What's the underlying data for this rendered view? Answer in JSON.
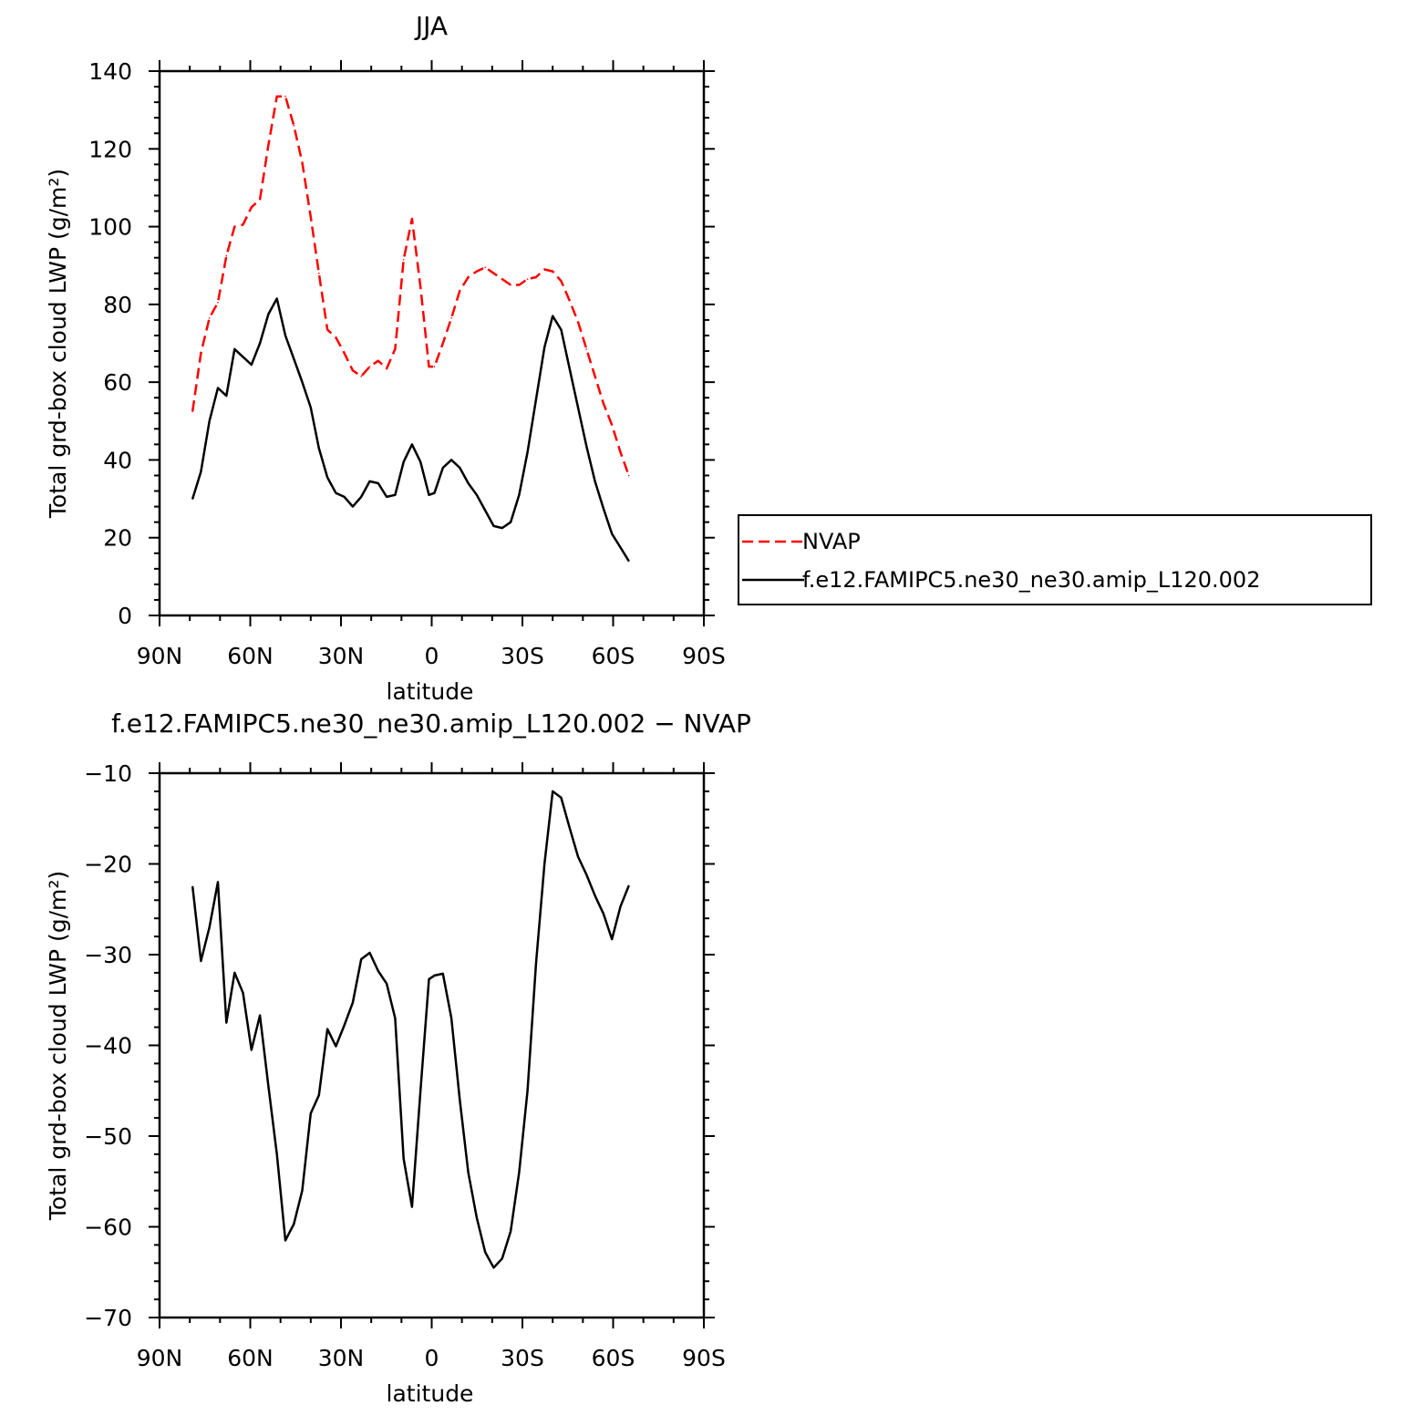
{
  "chart_data": [
    {
      "type": "line",
      "title": "JJA",
      "xlabel": "latitude",
      "ylabel": "Total grd-box cloud LWP (g/m²)",
      "xlim": [
        90,
        -90
      ],
      "ylim": [
        0,
        140
      ],
      "x_ticks": [
        90,
        60,
        30,
        0,
        -30,
        -60,
        -90
      ],
      "x_tick_labels": [
        "90N",
        "60N",
        "30N",
        "0",
        "30S",
        "60S",
        "90S"
      ],
      "y_ticks": [
        0,
        20,
        40,
        60,
        80,
        100,
        120,
        140
      ],
      "y_tick_labels": [
        "0",
        "20",
        "40",
        "60",
        "80",
        "100",
        "120",
        "140"
      ],
      "legend_position": "right",
      "x": [
        79.1,
        76.3,
        73.5,
        70.7,
        67.9,
        65.2,
        62.4,
        59.6,
        56.8,
        54.0,
        51.2,
        48.4,
        45.6,
        42.8,
        40.0,
        37.3,
        34.5,
        31.7,
        28.9,
        26.1,
        23.3,
        20.5,
        17.7,
        14.9,
        12.1,
        9.3,
        6.5,
        3.7,
        0.9,
        -0.9,
        -3.7,
        -6.5,
        -9.3,
        -12.1,
        -14.9,
        -17.7,
        -20.5,
        -23.3,
        -26.1,
        -28.9,
        -31.7,
        -34.5,
        -37.3,
        -40.0,
        -42.8,
        -45.6,
        -48.4,
        -51.2,
        -54.0,
        -56.8,
        -59.6,
        -62.4,
        -65.2
      ],
      "series": [
        {
          "name": "NVAP",
          "color": "#ff0000",
          "dash": "dashed",
          "values": [
            52.5,
            67.5,
            76.5,
            80.5,
            92.5,
            100.0,
            100.5,
            105.0,
            107.0,
            121.0,
            133.5,
            133.5,
            126.0,
            116.5,
            102.5,
            88.0,
            73.5,
            71.5,
            67.5,
            63.0,
            61.5,
            64.0,
            65.5,
            63.5,
            68.5,
            91.5,
            102.0,
            84.5,
            64.0,
            64.0,
            70.0,
            76.5,
            83.5,
            87.0,
            88.5,
            89.5,
            88.0,
            86.5,
            85.0,
            85.0,
            86.5,
            87.0,
            89.0,
            88.5,
            86.0,
            81.0,
            75.5,
            68.5,
            61.5,
            54.5,
            49.0,
            42.0,
            36.0
          ]
        },
        {
          "name": "f.e12.FAMIPC5.ne30_ne30.amip_L120.002",
          "color": "#000000",
          "dash": "solid",
          "values": [
            30.0,
            37.0,
            50.0,
            58.5,
            56.5,
            68.5,
            66.5,
            64.5,
            70.0,
            77.5,
            81.5,
            72.0,
            66.0,
            60.0,
            53.5,
            43.0,
            35.5,
            31.5,
            30.5,
            28.0,
            30.5,
            34.5,
            34.0,
            30.5,
            31.0,
            39.5,
            44.0,
            39.5,
            31.0,
            31.5,
            38.0,
            40.0,
            38.0,
            34.0,
            31.0,
            27.0,
            23.0,
            22.5,
            24.0,
            31.0,
            42.0,
            55.5,
            69.0,
            77.0,
            73.5,
            63.5,
            53.5,
            43.5,
            34.5,
            27.5,
            21.0,
            17.5,
            14.0
          ]
        }
      ]
    },
    {
      "type": "line",
      "title": "f.e12.FAMIPC5.ne30_ne30.amip_L120.002 − NVAP",
      "xlabel": "latitude",
      "ylabel": "Total grd-box cloud LWP (g/m²)",
      "xlim": [
        90,
        -90
      ],
      "ylim": [
        -70,
        -10
      ],
      "x_ticks": [
        90,
        60,
        30,
        0,
        -30,
        -60,
        -90
      ],
      "x_tick_labels": [
        "90N",
        "60N",
        "30N",
        "0",
        "30S",
        "60S",
        "90S"
      ],
      "y_ticks": [
        -70,
        -60,
        -50,
        -40,
        -30,
        -20,
        -10
      ],
      "y_tick_labels": [
        "−70",
        "−60",
        "−50",
        "−40",
        "−30",
        "−20",
        "−10"
      ],
      "x": [
        79.1,
        76.3,
        73.5,
        70.7,
        67.9,
        65.2,
        62.4,
        59.6,
        56.8,
        54.0,
        51.2,
        48.4,
        45.6,
        42.8,
        40.0,
        37.3,
        34.5,
        31.7,
        28.9,
        26.1,
        23.3,
        20.5,
        17.7,
        14.9,
        12.1,
        9.3,
        6.5,
        3.7,
        0.9,
        -0.9,
        -3.7,
        -6.5,
        -9.3,
        -12.1,
        -14.9,
        -17.7,
        -20.5,
        -23.3,
        -26.1,
        -28.9,
        -31.7,
        -34.5,
        -37.3,
        -40.0,
        -42.8,
        -45.6,
        -48.4,
        -51.2,
        -54.0,
        -56.8,
        -59.6,
        -62.4,
        -65.2
      ],
      "series": [
        {
          "color": "#000000",
          "dash": "solid",
          "values": [
            -22.5,
            -30.7,
            -27.0,
            -22.0,
            -37.5,
            -32.0,
            -34.2,
            -40.5,
            -36.7,
            -44.5,
            -52.0,
            -61.5,
            -59.7,
            -56.0,
            -47.5,
            -45.5,
            -38.2,
            -40.1,
            -37.8,
            -35.3,
            -30.5,
            -29.8,
            -31.8,
            -33.2,
            -37.0,
            -52.5,
            -57.8,
            -45.0,
            -32.7,
            -32.3,
            -32.1,
            -37.0,
            -46.0,
            -54.0,
            -59.0,
            -62.8,
            -64.5,
            -63.5,
            -60.5,
            -54.0,
            -45.0,
            -31.0,
            -20.0,
            -12.0,
            -12.7,
            -16.0,
            -19.2,
            -21.2,
            -23.5,
            -25.5,
            -28.3,
            -24.7,
            -22.4
          ]
        }
      ]
    }
  ]
}
